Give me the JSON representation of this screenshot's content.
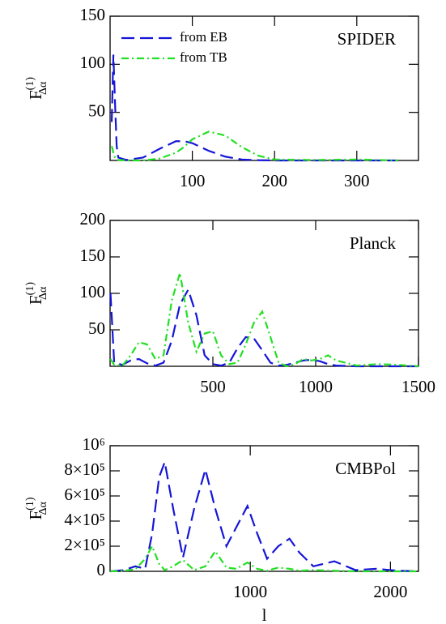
{
  "chart_data": [
    {
      "type": "line",
      "title": "SPIDER",
      "y_label": {
        "main": "F",
        "sup": "(1)",
        "sub": "Δα"
      },
      "legend": true,
      "legend_position": "upper left",
      "x": [
        2,
        4,
        6,
        8,
        10,
        20,
        40,
        60,
        80,
        90,
        100,
        120,
        140,
        160,
        180,
        200,
        250,
        300,
        350
      ],
      "series": [
        {
          "name": "from EB",
          "color": "#1515d8",
          "dash": "dashed",
          "values": [
            40,
            110,
            60,
            15,
            3,
            0.5,
            3,
            12,
            20,
            20,
            18,
            10,
            4,
            1,
            0.3,
            0,
            0,
            0,
            0
          ]
        },
        {
          "name": "from TB",
          "color": "#22e022",
          "dash": "dashdot",
          "values": [
            15,
            8,
            3,
            1,
            0.5,
            0,
            0,
            2,
            8,
            14,
            22,
            30,
            26,
            14,
            5,
            1,
            0.5,
            1,
            0
          ]
        }
      ],
      "xlim": [
        0,
        375
      ],
      "xticks": [
        100,
        200,
        300
      ],
      "ylim": [
        0,
        150
      ],
      "yticks": [
        50,
        100,
        150
      ]
    },
    {
      "type": "line",
      "title": "Planck",
      "y_label": {
        "main": "F",
        "sup": "(1)",
        "sub": "Δα"
      },
      "legend": false,
      "x": [
        2,
        20,
        60,
        100,
        140,
        180,
        220,
        260,
        300,
        340,
        380,
        420,
        460,
        500,
        540,
        580,
        620,
        660,
        700,
        740,
        780,
        820,
        860,
        900,
        940,
        980,
        1020,
        1060,
        1100,
        1200,
        1300,
        1400,
        1500
      ],
      "series": [
        {
          "name": "from EB",
          "color": "#1515d8",
          "dash": "dashed",
          "values": [
            100,
            5,
            2,
            8,
            10,
            4,
            1,
            5,
            35,
            85,
            105,
            70,
            15,
            3,
            1,
            5,
            25,
            40,
            38,
            22,
            5,
            1,
            2,
            5,
            8,
            9,
            7,
            3,
            1,
            0,
            0,
            0,
            0
          ]
        },
        {
          "name": "from TB",
          "color": "#22e022",
          "dash": "dashdot",
          "values": [
            10,
            2,
            1,
            15,
            33,
            30,
            10,
            15,
            90,
            128,
            60,
            20,
            45,
            48,
            15,
            3,
            5,
            30,
            60,
            75,
            40,
            5,
            0,
            3,
            10,
            8,
            10,
            15,
            8,
            1,
            3,
            2,
            0
          ]
        }
      ],
      "xlim": [
        0,
        1500
      ],
      "xticks": [
        500,
        1000,
        1500
      ],
      "ylim": [
        0,
        200
      ],
      "yticks": [
        50,
        100,
        150,
        200
      ]
    },
    {
      "type": "line",
      "title": "CMBPol",
      "y_label": {
        "main": "F",
        "sup": "(1)",
        "sub": "Δα"
      },
      "x_label": "l",
      "legend": false,
      "x": [
        2,
        100,
        180,
        250,
        300,
        350,
        390,
        450,
        520,
        600,
        680,
        750,
        830,
        900,
        980,
        1050,
        1120,
        1200,
        1280,
        1350,
        1450,
        1600,
        1750,
        1900,
        2050,
        2200
      ],
      "series": [
        {
          "name": "from EB",
          "color": "#1515d8",
          "dash": "dashed",
          "values": [
            0,
            10000,
            40000,
            20000,
            300000,
            750000,
            870000,
            500000,
            110000,
            500000,
            810000,
            500000,
            200000,
            350000,
            520000,
            300000,
            100000,
            200000,
            260000,
            150000,
            40000,
            80000,
            10000,
            20000,
            5000,
            0
          ]
        },
        {
          "name": "from TB",
          "color": "#22e022",
          "dash": "dashdot",
          "values": [
            0,
            5000,
            15000,
            100000,
            200000,
            60000,
            10000,
            40000,
            90000,
            10000,
            40000,
            160000,
            30000,
            20000,
            70000,
            20000,
            5000,
            30000,
            20000,
            5000,
            10000,
            5000,
            0,
            0,
            0,
            0
          ]
        }
      ],
      "xlim": [
        0,
        2200
      ],
      "xticks": [
        1000,
        2000
      ],
      "ylim": [
        0,
        1000000
      ],
      "yticks": [
        0,
        {
          "value": 200000,
          "label": "2×10⁵"
        },
        {
          "value": 400000,
          "label": "4×10⁵"
        },
        {
          "value": 600000,
          "label": "6×10⁵"
        },
        {
          "value": 800000,
          "label": "8×10⁵"
        },
        {
          "value": 1000000,
          "label": "10⁶"
        }
      ]
    }
  ]
}
